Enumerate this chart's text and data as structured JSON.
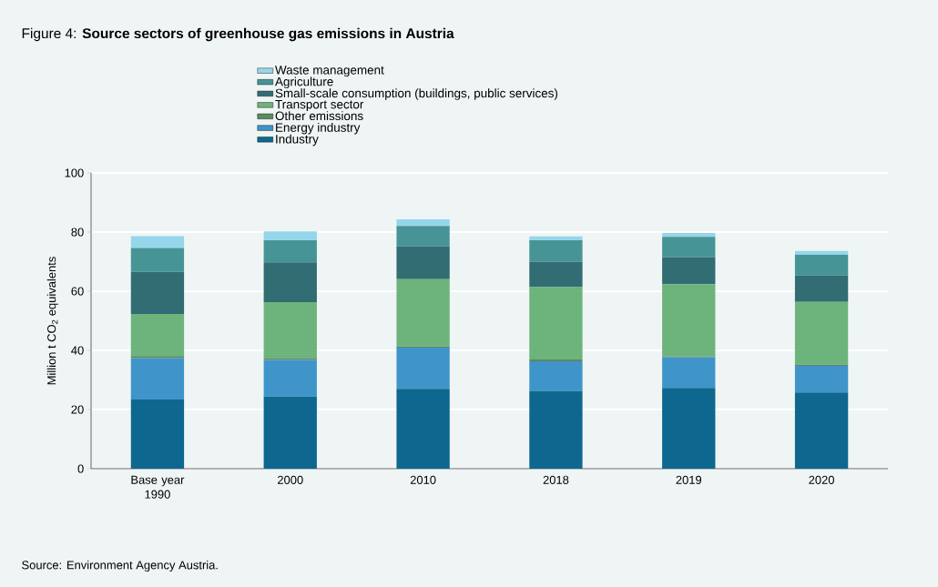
{
  "chart_data": {
    "type": "bar",
    "stacked": true,
    "title": "Figure 4: **Source sectors of greenhouse gas emissions in Austria**",
    "ylabel": "Million t CO$_{2}$ equivalents",
    "categories": [
      "Base year 1990",
      "2000",
      "2010",
      "2018",
      "2019",
      "2020"
    ],
    "series": [
      {
        "name": "Industry",
        "color": "#0e678f",
        "values": [
          23.4,
          24.4,
          27.0,
          26.3,
          27.3,
          25.8
        ]
      },
      {
        "name": "Energy industry",
        "color": "#3f95c9",
        "values": [
          14.0,
          12.4,
          13.9,
          10.0,
          10.4,
          9.0
        ]
      },
      {
        "name": "Other emissions",
        "color": "#5a8a5e",
        "values": [
          0.7,
          0.6,
          0.5,
          0.6,
          0.3,
          0.4
        ]
      },
      {
        "name": "Transport sector",
        "color": "#6db37c",
        "values": [
          14.2,
          18.9,
          22.7,
          24.5,
          24.4,
          21.2
        ]
      },
      {
        "name": "Small-scale consumption (buildings, public services)",
        "color": "#316d73",
        "values": [
          14.2,
          13.5,
          11.1,
          8.6,
          9.1,
          8.9
        ]
      },
      {
        "name": "Agriculture",
        "color": "#479496",
        "values": [
          8.1,
          7.4,
          6.9,
          7.2,
          6.9,
          7.0
        ]
      },
      {
        "name": "Waste management",
        "color": "#96d6ea",
        "values": [
          4.0,
          3.0,
          2.2,
          1.3,
          1.3,
          1.3
        ]
      }
    ],
    "ylim": [
      0,
      100
    ],
    "yticks": [
      0,
      20,
      40,
      60,
      80,
      100
    ],
    "grid": "y",
    "legend": "top",
    "annotations": [
      "Source: Environment Agency Austria."
    ]
  }
}
